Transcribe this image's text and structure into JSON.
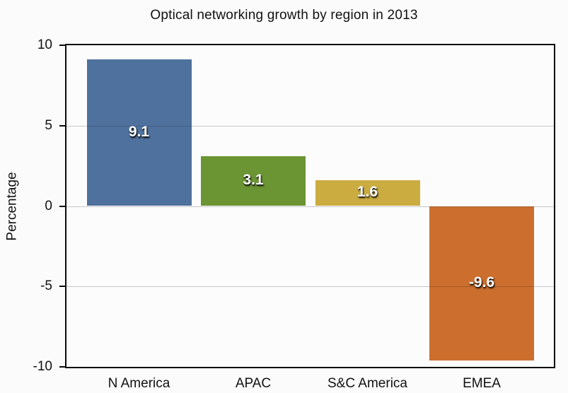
{
  "title": "Optical networking growth by region in 2013",
  "chart_data": {
    "type": "bar",
    "title": "Optical networking growth by region in 2013",
    "categories": [
      "N America",
      "APAC",
      "S&C America",
      "EMEA"
    ],
    "values": [
      9.1,
      3.1,
      1.6,
      -9.6
    ],
    "value_labels": [
      "9.1",
      "3.1",
      "1.6",
      "-9.6"
    ],
    "bar_colors": [
      "#4F719E",
      "#6B9433",
      "#CBAC41",
      "#CC6E2E"
    ],
    "xlabel": "",
    "ylabel": "Percentage",
    "ylim": [
      -10,
      10
    ],
    "yticks": [
      10,
      5,
      0,
      -5,
      -10
    ],
    "gridline_values": [
      5,
      0,
      -5
    ],
    "grid": "horizontal gridlines drawn over bars",
    "legend": "none",
    "value_label_style": "white bold text with dark drop shadow, centered inside bar",
    "colors": {
      "background": "#fbfbfb",
      "plot_background": "#fcfcfc",
      "plot_border": "#0a0a0a",
      "gridline": "#c5c5c5",
      "text": "#111111"
    }
  }
}
